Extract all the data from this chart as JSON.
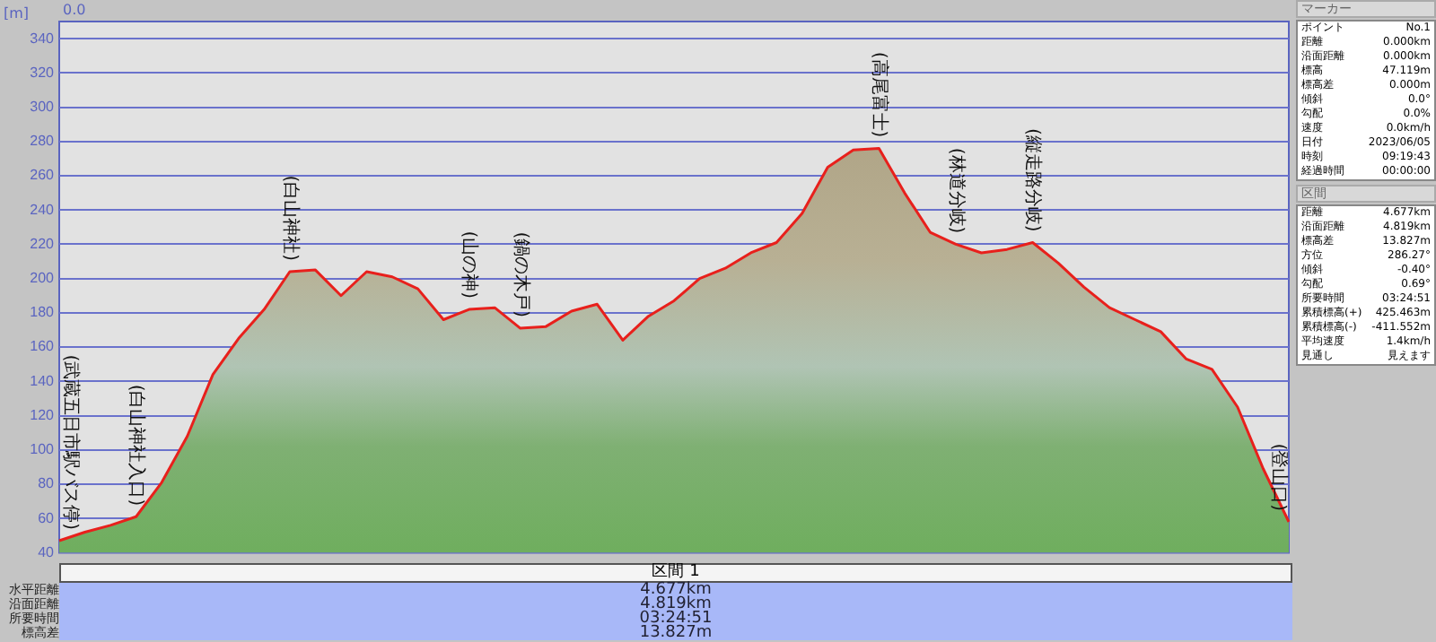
{
  "chart_data": {
    "type": "area",
    "ylabel": "[m]",
    "grid": "y",
    "legend": false,
    "marker": "none",
    "categories": [
      null,
      null,
      null,
      null,
      null,
      null,
      null,
      null,
      null,
      null,
      null,
      null,
      null,
      null,
      null,
      null,
      null,
      null,
      null,
      null,
      null,
      null,
      null,
      null,
      null,
      null,
      null,
      null,
      null,
      null,
      null,
      null,
      null,
      null,
      null,
      null,
      null,
      null,
      null,
      null,
      null,
      null,
      null,
      null,
      null,
      null,
      null,
      null,
      null
    ],
    "ylim": [
      40,
      350
    ],
    "yticks": [
      40,
      60,
      80,
      100,
      120,
      140,
      160,
      180,
      200,
      220,
      240,
      260,
      280,
      300,
      320,
      340
    ],
    "series": [
      {
        "color": "#e8201c",
        "values": [
          47,
          52,
          56,
          61,
          81,
          108,
          144,
          165,
          182,
          204,
          205,
          190,
          204,
          201,
          194,
          176,
          182,
          183,
          171,
          172,
          181,
          185,
          164,
          178,
          187,
          200,
          206,
          215,
          221,
          238,
          265,
          275,
          276,
          250,
          227,
          220,
          215,
          217,
          221,
          209,
          195,
          183,
          176,
          169,
          153,
          147,
          125,
          89,
          58
        ],
        "value_labels": [
          "(武蔵五日市駅バス停)",
          null,
          null,
          "(白山神社入口)",
          null,
          null,
          null,
          null,
          null,
          "(白山神社)",
          null,
          null,
          null,
          null,
          null,
          null,
          "(山の神)",
          null,
          "(鍋の木戸)",
          null,
          null,
          null,
          null,
          null,
          null,
          null,
          null,
          null,
          null,
          null,
          null,
          null,
          "(高尾富士)",
          null,
          null,
          "(林道分岐)",
          null,
          null,
          "(縦走路分岐)",
          null,
          null,
          null,
          null,
          null,
          null,
          null,
          null,
          null,
          "(登山口)"
        ]
      }
    ],
    "annotations": [
      "0.0",
      "区間 1",
      "水平距離 4.677km",
      "沿面距離 4.819km",
      "所要時間 03:24:51",
      "標高差 13.827m",
      "マーカー",
      "ポイント No.1",
      "距離 0.000km",
      "沿面距離 0.000km",
      "標高 47.119m",
      "標高差 0.000m",
      "傾斜 0.0°",
      "勾配 0.0%",
      "速度 0.0km/h",
      "日付 2023/06/05",
      "時刻 09:19:43",
      "経過時間 00:00:00",
      "区間",
      "距離 4.677km",
      "沿面距離 4.819km",
      "標高差 13.827m",
      "方位 286.27°",
      "傾斜 -0.40°",
      "勾配 0.69°",
      "所要時間 03:24:51",
      "累積標高(+) 425.463m",
      "累積標高(-) -411.552m",
      "平均速度 1.4km/h",
      "見通し 見えます"
    ]
  }
}
